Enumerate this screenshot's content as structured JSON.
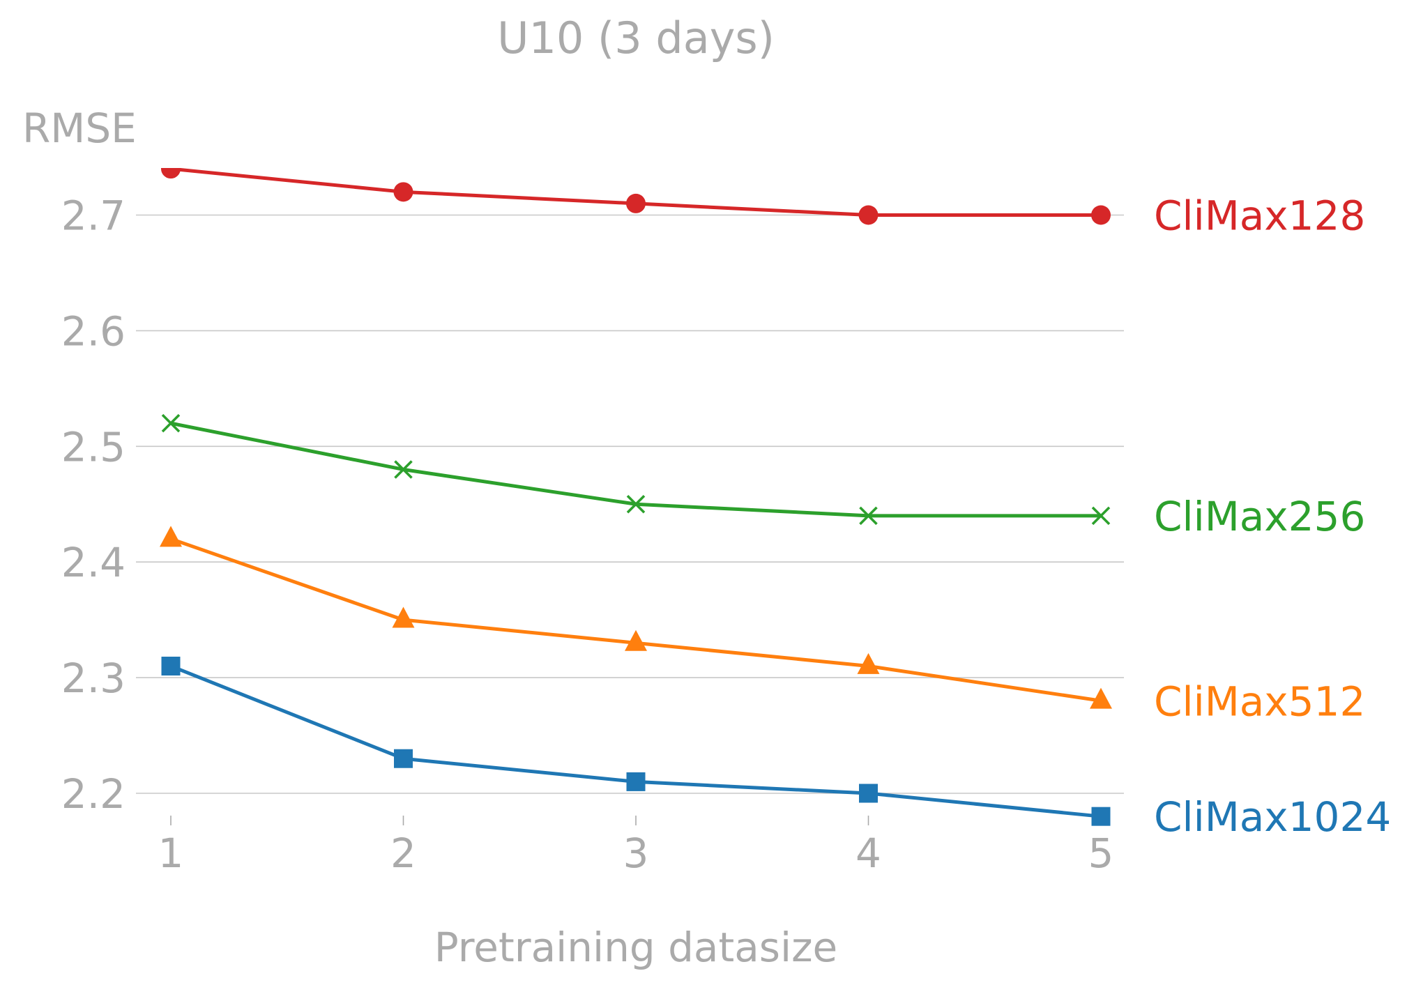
{
  "chart_data": {
    "type": "line",
    "title": "U10 (3 days)",
    "xlabel": "Pretraining datasize",
    "ylabel": "RMSE",
    "x": [
      1,
      2,
      3,
      4,
      5
    ],
    "x_tick_labels": [
      "1",
      "2",
      "3",
      "4",
      "5"
    ],
    "y_ticks": [
      2.2,
      2.3,
      2.4,
      2.5,
      2.6,
      2.7
    ],
    "y_tick_labels": [
      "2.2",
      "2.3",
      "2.4",
      "2.5",
      "2.6",
      "2.7"
    ],
    "xlim": [
      0.86,
      5.1
    ],
    "ylim": [
      2.18,
      2.74
    ],
    "grid": true,
    "legend": "direct labels at right end of each line",
    "series": [
      {
        "name": "CliMax128",
        "label": "CliMax128",
        "color": "#d62728",
        "marker": "circle",
        "values": [
          2.74,
          2.72,
          2.71,
          2.7,
          2.7
        ]
      },
      {
        "name": "CliMax256",
        "label": "CliMax256",
        "color": "#2ca02c",
        "marker": "x",
        "values": [
          2.52,
          2.48,
          2.45,
          2.44,
          2.44
        ]
      },
      {
        "name": "CliMax512",
        "label": "CliMax512",
        "color": "#ff7f0e",
        "marker": "triangle",
        "values": [
          2.42,
          2.35,
          2.33,
          2.31,
          2.28
        ]
      },
      {
        "name": "CliMax1024",
        "label": "CliMax1024",
        "color": "#1f77b4",
        "marker": "square",
        "values": [
          2.31,
          2.23,
          2.21,
          2.2,
          2.18
        ]
      }
    ]
  }
}
